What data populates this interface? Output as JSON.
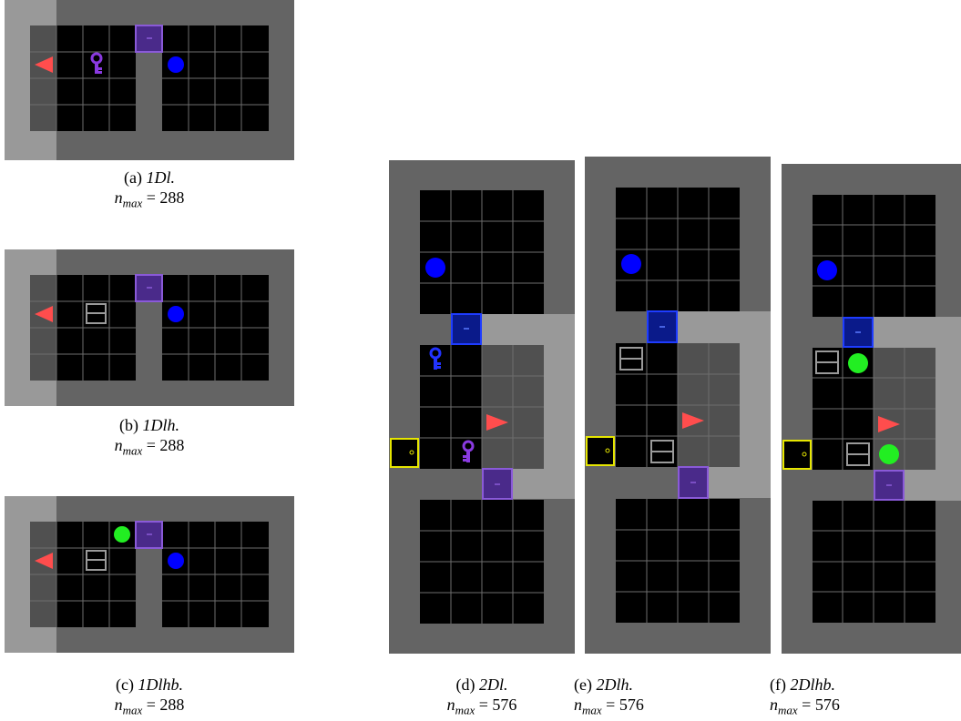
{
  "colors": {
    "wall": "#646464",
    "floor": "#000000",
    "explored": "#505050",
    "corridor_light": "#999999",
    "grid_line": "#6e6e6e",
    "agent": "#ff4d4d",
    "ball_blue": "#0000ff",
    "ball_green": "#22ee22",
    "door_purple": "#4a2a8a",
    "door_purple_border": "#8a5ad8",
    "door_blue": "#0a1a8a",
    "door_blue_border": "#1e3cff",
    "door_yellow_border": "#e6e600",
    "key_purple": "#8a3ae0",
    "key_blue": "#2233ff",
    "box_outline": "#9a9a9a"
  },
  "panels": [
    {
      "id": "a",
      "letter": "(a)",
      "name": "1Dl.",
      "n_max_label": "n",
      "n_max_sub": "max",
      "n_max_value": "= 288"
    },
    {
      "id": "b",
      "letter": "(b)",
      "name": "1Dlh.",
      "n_max_label": "n",
      "n_max_sub": "max",
      "n_max_value": "= 288"
    },
    {
      "id": "c",
      "letter": "(c)",
      "name": "1Dlhb.",
      "n_max_label": "n",
      "n_max_sub": "max",
      "n_max_value": "= 288"
    },
    {
      "id": "d",
      "letter": "(d)",
      "name": "2Dl.",
      "n_max_label": "n",
      "n_max_sub": "max",
      "n_max_value": "= 576"
    },
    {
      "id": "e",
      "letter": "(e)",
      "name": "2Dlh.",
      "n_max_label": "n",
      "n_max_sub": "max",
      "n_max_value": "= 576"
    },
    {
      "id": "f",
      "letter": "(f)",
      "name": "2Dlhb.",
      "n_max_label": "n",
      "n_max_sub": "max",
      "n_max_value": "= 576"
    }
  ],
  "icons": {
    "agent": "agent-triangle-icon",
    "ball": "ball-icon",
    "key": "key-icon",
    "box": "box-icon",
    "door_locked": "locked-door-icon",
    "door_yellow": "yellow-door-icon"
  }
}
